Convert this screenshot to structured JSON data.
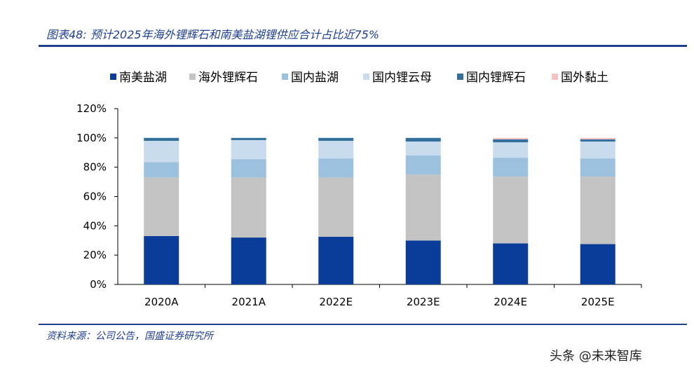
{
  "header": {
    "title": "图表48: 预计2025年海外锂辉石和南美盐湖锂供应合计占比近75%"
  },
  "footer": {
    "source": "资料来源：公司公告，国盛证券研究所",
    "watermark": "头条 @未来智库"
  },
  "chart_data": {
    "type": "bar",
    "stacked": true,
    "categories": [
      "2020A",
      "2021A",
      "2022E",
      "2023E",
      "2024E",
      "2025E"
    ],
    "series": [
      {
        "name": "南美盐湖",
        "color": "#0a3d9a",
        "values": [
          33,
          32,
          32.5,
          30,
          28,
          27.5
        ]
      },
      {
        "name": "海外锂辉石",
        "color": "#c3c3c3",
        "values": [
          40,
          41,
          40.5,
          45,
          45.5,
          46
        ]
      },
      {
        "name": "国内盐湖",
        "color": "#9cc1df",
        "values": [
          10.5,
          12.5,
          13,
          13,
          13,
          12.5
        ]
      },
      {
        "name": "国内锂云母",
        "color": "#c8dcee",
        "values": [
          14.5,
          13,
          12,
          9.5,
          10.5,
          11.5
        ]
      },
      {
        "name": "国内锂辉石",
        "color": "#34709e",
        "values": [
          2,
          1.5,
          2,
          2.5,
          2,
          1.5
        ]
      },
      {
        "name": "国外黏土",
        "color": "#f4c2c2",
        "values": [
          0,
          0,
          0,
          0,
          1,
          1
        ]
      }
    ],
    "ylim": [
      0,
      120
    ],
    "yticks": [
      "0%",
      "20%",
      "40%",
      "60%",
      "80%",
      "100%",
      "120%"
    ],
    "legend_position": "top",
    "grid": false
  }
}
